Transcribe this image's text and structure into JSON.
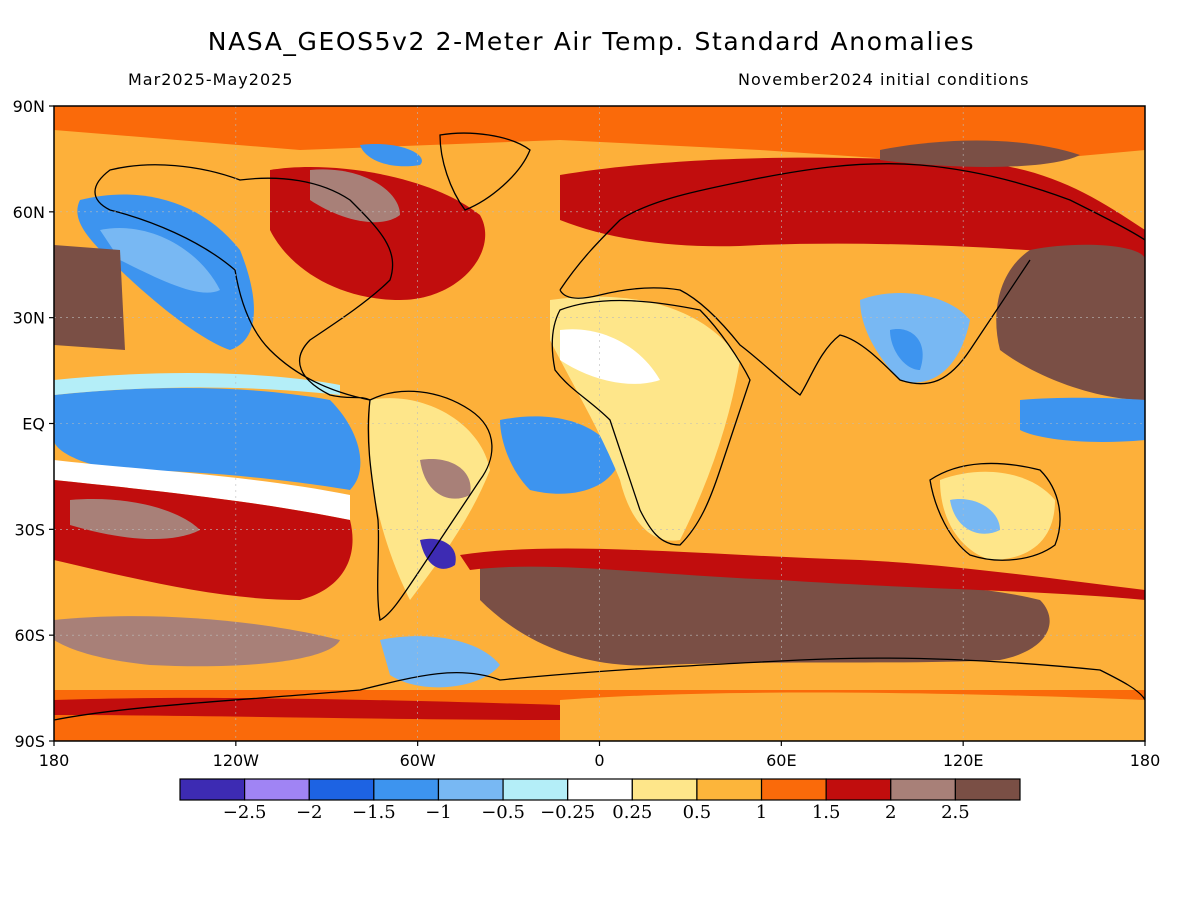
{
  "header": {
    "title": "NASA_GEOS5v2 2-Meter Air Temp. Standard Anomalies",
    "period": "Mar2025-May2025",
    "initial_conditions": "November2024 initial conditions"
  },
  "map": {
    "lat_ticks": [
      {
        "lat": 90,
        "label": "90N"
      },
      {
        "lat": 60,
        "label": "60N"
      },
      {
        "lat": 30,
        "label": "30N"
      },
      {
        "lat": 0,
        "label": "EQ"
      },
      {
        "lat": -30,
        "label": "30S"
      },
      {
        "lat": -60,
        "label": "60S"
      },
      {
        "lat": -90,
        "label": "90S"
      }
    ],
    "lon_ticks": [
      {
        "lon": -180,
        "label": "180"
      },
      {
        "lon": -120,
        "label": "120W"
      },
      {
        "lon": -60,
        "label": "60W"
      },
      {
        "lon": 0,
        "label": "0"
      },
      {
        "lon": 60,
        "label": "60E"
      },
      {
        "lon": 120,
        "label": "120E"
      },
      {
        "lon": 180,
        "label": "180"
      }
    ],
    "background_color": "#fdb03a"
  },
  "colorbar": {
    "colors": [
      "#3d2bb3",
      "#a084f4",
      "#1d63e3",
      "#3d94ef",
      "#78b8f3",
      "#b4eef8",
      "#ffffff",
      "#fee68a",
      "#fcb53b",
      "#fa6a0a",
      "#c10d0d",
      "#a88078",
      "#7a4f45"
    ],
    "labels": [
      "-2.5",
      "-2",
      "-1.5",
      "-1",
      "-0.5",
      "-0.25",
      "0.25",
      "0.5",
      "1",
      "1.5",
      "2",
      "2.5"
    ]
  }
}
